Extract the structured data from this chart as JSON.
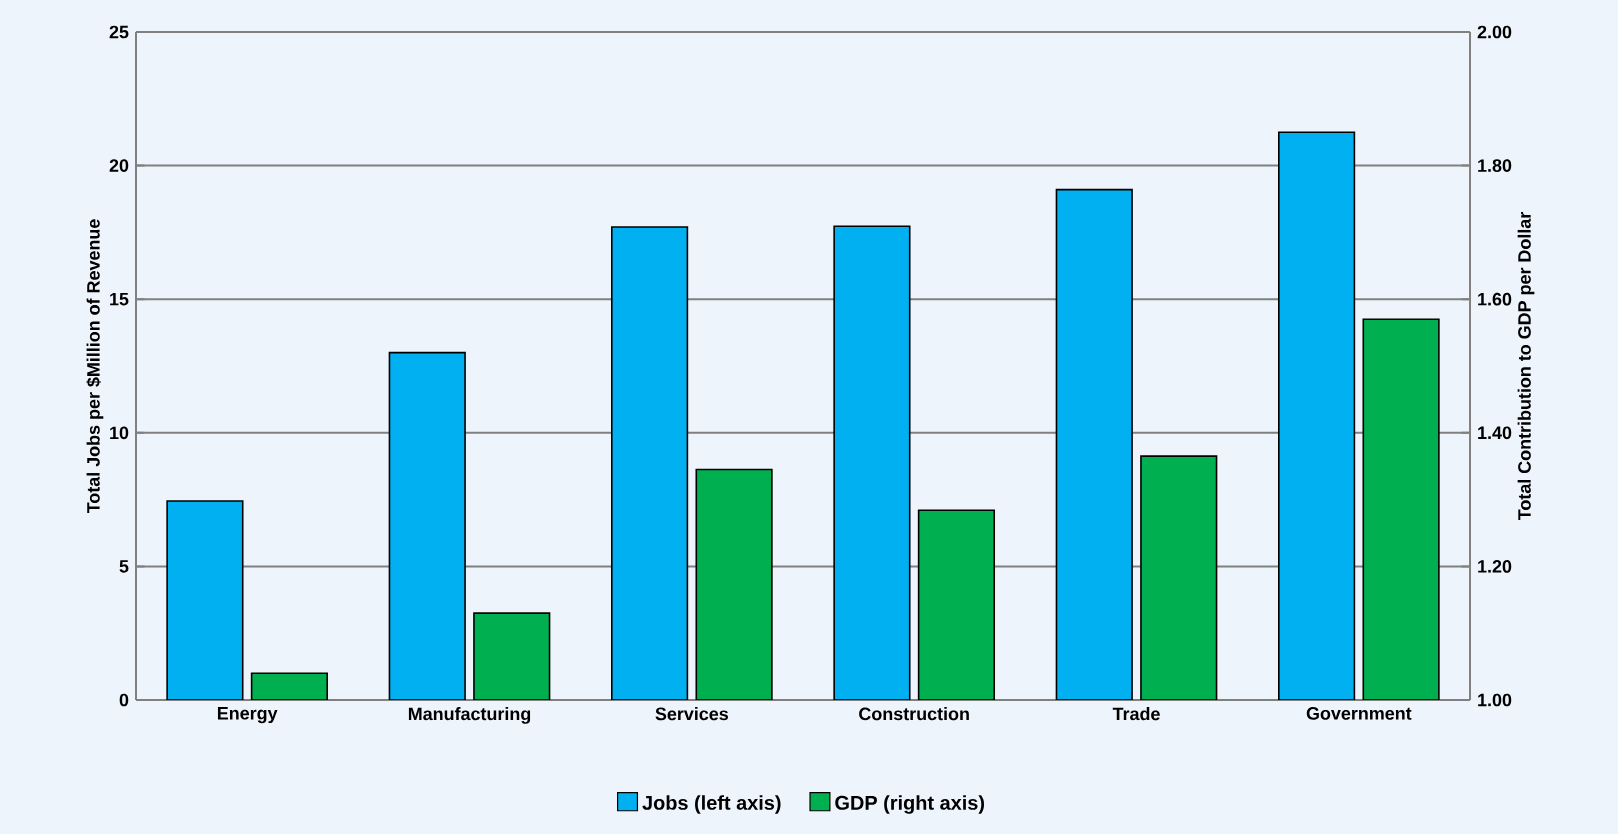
{
  "chart_data": {
    "type": "bar",
    "categories": [
      "Energy",
      "Manufacturing",
      "Services",
      "Construction",
      "Trade",
      "Government"
    ],
    "ylabel": "Total Jobs per $Million of Revenue",
    "y2label": "Total Contribution to GDP per Dollar",
    "series": [
      {
        "name": "Jobs (left axis)",
        "color": "#00b0f0",
        "values": [
          7.45,
          13.0,
          17.7,
          17.73,
          19.1,
          21.25
        ]
      },
      {
        "name": "GDP (right axis)",
        "color": "#00b050",
        "axis": "y2",
        "values": [
          1.04,
          1.13,
          1.345,
          1.284,
          1.365,
          1.57
        ]
      }
    ],
    "ylim": [
      0,
      25
    ],
    "yticks": [
      0,
      5,
      10,
      15,
      20,
      25
    ],
    "y2lim": [
      1.0,
      2.0
    ],
    "y2ticks": [
      {
        "value": 1.0,
        "label": "1.00"
      },
      {
        "value": 1.2,
        "label": "1.20"
      },
      {
        "value": 1.4,
        "label": "1.40"
      },
      {
        "value": 1.6,
        "label": "1.60"
      },
      {
        "value": 1.8,
        "label": "1.80"
      },
      {
        "value": 2.0,
        "label": "2.00"
      }
    ],
    "grid": "y",
    "legend": "bottom"
  }
}
